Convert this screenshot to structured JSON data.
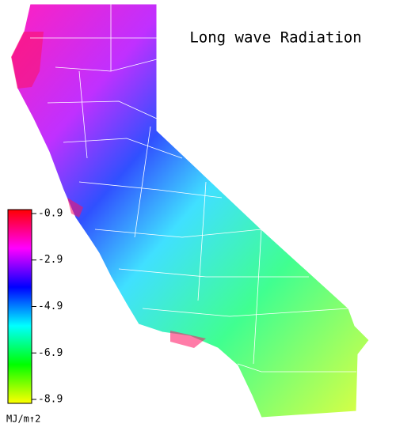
{
  "title": "Long wave Radiation",
  "legend": {
    "unit": "MJ/m↑2",
    "clim": [
      -9.07,
      -0.73
    ],
    "ticks": [
      -0.9,
      -2.9,
      -4.9,
      -6.9,
      -8.9
    ],
    "colormap": [
      "#ff0000",
      "#ff00ff",
      "#0000ff",
      "#00ffff",
      "#00ff00",
      "#ffff00"
    ]
  }
}
